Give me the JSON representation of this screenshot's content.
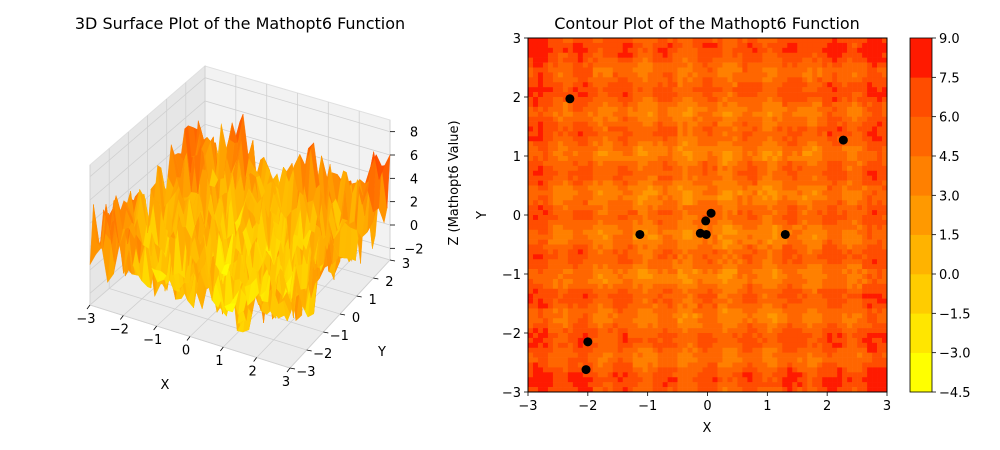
{
  "chart_data": [
    {
      "type": "surface",
      "title": "3D Surface Plot of the Mathopt6 Function",
      "xlabel": "X",
      "ylabel": "Y",
      "zlabel": "Z (Mathopt6 Value)",
      "xlim": [
        -3,
        3
      ],
      "ylim": [
        -3,
        3
      ],
      "zlim": [
        -3,
        9
      ],
      "x_ticks": [
        "−3",
        "−2",
        "−1",
        "0",
        "1",
        "2",
        "3"
      ],
      "y_ticks": [
        "−3",
        "−2",
        "−1",
        "0",
        "1",
        "2",
        "3"
      ],
      "z_ticks": [
        "−2",
        "0",
        "2",
        "4",
        "6",
        "8"
      ],
      "colormap": [
        "#ffff00",
        "#ff8c00",
        "#ff0000"
      ],
      "grid": true
    },
    {
      "type": "contour",
      "title": "Contour Plot of the Mathopt6 Function",
      "xlabel": "X",
      "ylabel": "Y",
      "xlim": [
        -3,
        3
      ],
      "ylim": [
        -3,
        3
      ],
      "x_ticks": [
        "−3",
        "−2",
        "−1",
        "0",
        "1",
        "2",
        "3"
      ],
      "y_ticks": [
        "−3",
        "−2",
        "−1",
        "0",
        "1",
        "2",
        "3"
      ],
      "colorbar_levels": [
        -4.5,
        -3.0,
        -1.5,
        0.0,
        1.5,
        3.0,
        4.5,
        6.0,
        7.5,
        9.0
      ],
      "colorbar_tick_labels": [
        "−4.5",
        "−3.0",
        "−1.5",
        "0.0",
        "1.5",
        "3.0",
        "4.5",
        "6.0",
        "7.5",
        "9.0"
      ],
      "points": [
        {
          "x": -2.3,
          "y": 1.97
        },
        {
          "x": -1.13,
          "y": -0.33
        },
        {
          "x": -2.0,
          "y": -2.15
        },
        {
          "x": -2.03,
          "y": -2.62
        },
        {
          "x": -0.12,
          "y": -0.31
        },
        {
          "x": -0.02,
          "y": -0.33
        },
        {
          "x": -0.03,
          "y": -0.1
        },
        {
          "x": 0.06,
          "y": 0.03
        },
        {
          "x": 1.3,
          "y": -0.33
        },
        {
          "x": 2.27,
          "y": 1.27
        }
      ],
      "point_color": "#000000"
    }
  ]
}
